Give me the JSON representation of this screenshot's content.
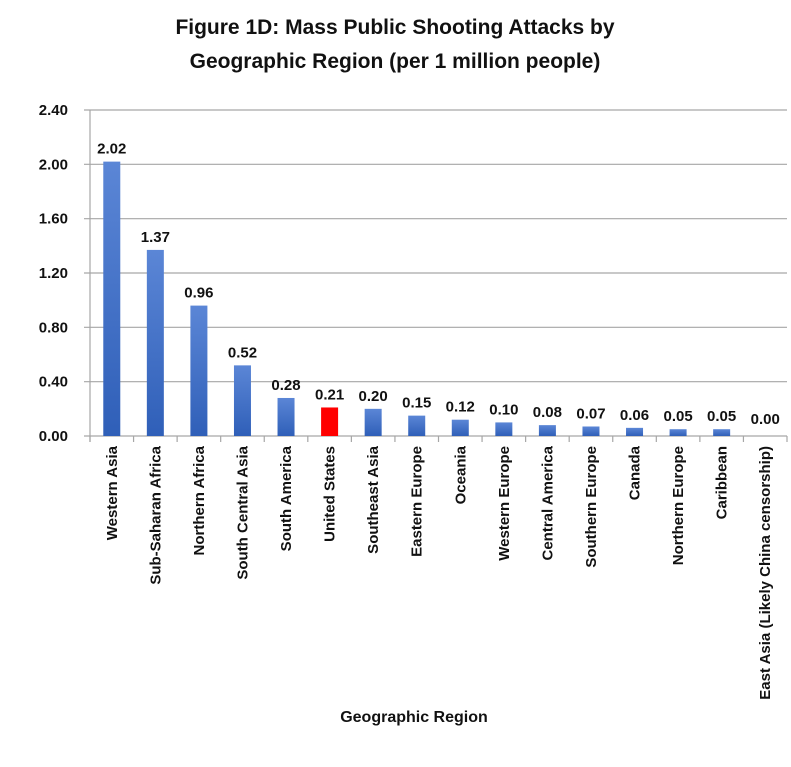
{
  "chart_data": {
    "type": "bar",
    "title": [
      "Figure 1D: Mass Public Shooting Attacks by",
      "Geographic Region (per 1 million people)"
    ],
    "xlabel": "Geographic Region",
    "ylabel": "",
    "ylim": [
      0,
      2.4
    ],
    "yticks": [
      "0.00",
      "0.40",
      "0.80",
      "1.20",
      "1.60",
      "2.00",
      "2.40"
    ],
    "grid": true,
    "categories": [
      "Western Asia",
      "Sub-Saharan Africa",
      "Northern Africa",
      "South Central Asia",
      "South America",
      "United States",
      "Southeast Asia",
      "Eastern Europe",
      "Oceania",
      "Western Europe",
      "Central America",
      "Southern Europe",
      "Canada",
      "Northern Europe",
      "Caribbean",
      "East Asia (Likely China censorship)"
    ],
    "values": [
      2.02,
      1.37,
      0.96,
      0.52,
      0.28,
      0.21,
      0.2,
      0.15,
      0.12,
      0.1,
      0.08,
      0.07,
      0.06,
      0.05,
      0.05,
      0.0
    ],
    "data_labels": [
      "2.02",
      "1.37",
      "0.96",
      "0.52",
      "0.28",
      "0.21",
      "0.20",
      "0.15",
      "0.12",
      "0.10",
      "0.08",
      "0.07",
      "0.06",
      "0.05",
      "0.05",
      "0.00"
    ],
    "colors": {
      "default": "#3f6fc8",
      "highlight": "#ff0000",
      "grid": "#a6a6a6"
    },
    "highlight_category": "United States"
  }
}
